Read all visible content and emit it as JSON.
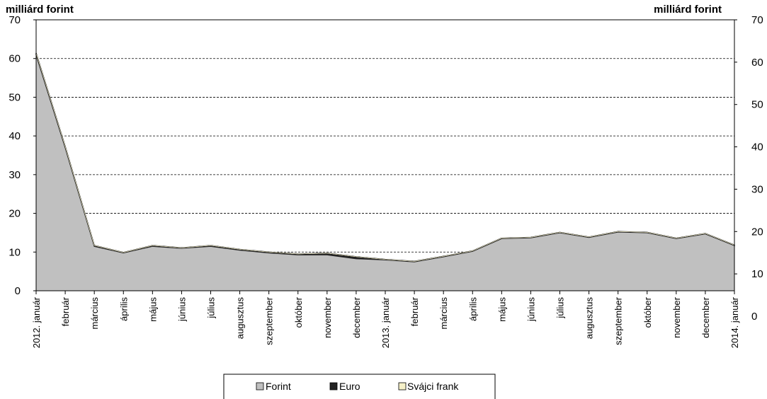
{
  "chart_data": {
    "type": "area",
    "y_unit_left": "milliárd forint",
    "y_unit_right": "milliárd forint",
    "ylim_left": [
      0,
      70
    ],
    "yticks_left": [
      "0",
      "10",
      "20",
      "30",
      "40",
      "50",
      "60",
      "70"
    ],
    "ylim_right": [
      0,
      70
    ],
    "yticks_right": [
      "0",
      "10",
      "20",
      "30",
      "40",
      "50",
      "60",
      "70"
    ],
    "grid": "horizontal dashed",
    "categories": [
      "2012. január",
      "február",
      "március",
      "április",
      "május",
      "június",
      "július",
      "augusztus",
      "szeptember",
      "október",
      "november",
      "december",
      "2013. január",
      "február",
      "március",
      "április",
      "május",
      "június",
      "július",
      "augusztus",
      "szeptember",
      "október",
      "november",
      "december",
      "2014. január"
    ],
    "series": [
      {
        "name": "Forint",
        "color": "#c0c0c0",
        "values": [
          61.0,
          37.0,
          11.5,
          9.8,
          11.5,
          11.0,
          11.5,
          10.5,
          9.8,
          9.3,
          9.3,
          8.3,
          8.0,
          7.5,
          8.8,
          10.2,
          13.5,
          13.7,
          15.0,
          13.8,
          15.2,
          15.0,
          13.5,
          14.7,
          11.7
        ]
      },
      {
        "name": "Euro",
        "color": "#222222",
        "values": [
          0.4,
          0.3,
          0.2,
          0.1,
          0.2,
          0.1,
          0.2,
          0.2,
          0.2,
          0.2,
          0.4,
          0.5,
          0.1,
          0.1,
          0.1,
          0.1,
          0.1,
          0.1,
          0.1,
          0.1,
          0.1,
          0.1,
          0.1,
          0.1,
          0.1
        ]
      },
      {
        "name": "Svájci frank",
        "color": "#f5f0c8",
        "values": [
          0,
          0,
          0,
          0,
          0,
          0,
          0,
          0,
          0,
          0,
          0,
          0,
          0,
          0,
          0,
          0,
          0,
          0,
          0,
          0,
          0,
          0,
          0,
          0,
          0
        ]
      }
    ],
    "legend": "bottom-center"
  }
}
